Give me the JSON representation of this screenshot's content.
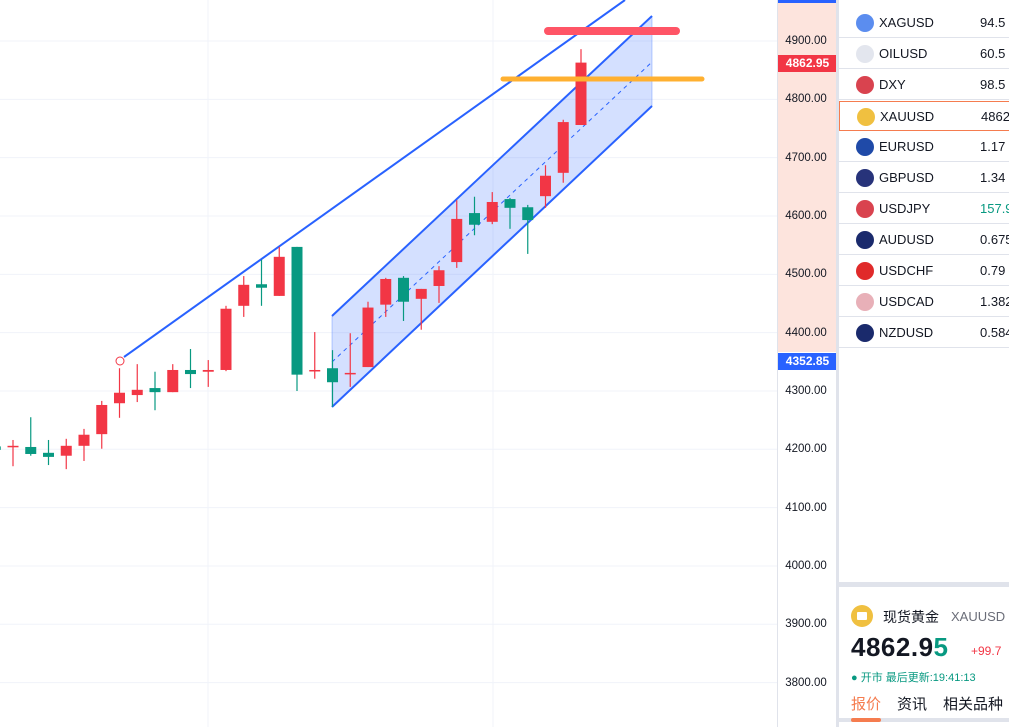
{
  "colors": {
    "up": "#f23645",
    "down": "#089981",
    "drawing": "#2962ff",
    "accent": "#f57c4f",
    "red_level": "#ff5566",
    "orange_level": "#ffb030"
  },
  "price_axis": {
    "ticks": [
      "4900.00",
      "4800.00",
      "4700.00",
      "4600.00",
      "4500.00",
      "4400.00",
      "4300.00",
      "4200.00",
      "4100.00",
      "4000.00",
      "3900.00",
      "3800.00"
    ],
    "last_price_label": "4862.95",
    "crosshair_price_label": "4352.85"
  },
  "watchlist": [
    {
      "symbol": "XAGUSD",
      "value": "94.5",
      "icon": "silver-icon",
      "icon_color": "#5b8def"
    },
    {
      "symbol": "OILUSD",
      "value": "60.5",
      "icon": "oil-icon",
      "icon_color": "#e3e6ee"
    },
    {
      "symbol": "DXY",
      "value": "98.5",
      "icon": "us-flag-icon",
      "icon_color": "#d9434f"
    },
    {
      "symbol": "XAUUSD",
      "value": "4862",
      "icon": "gold-icon",
      "icon_color": "#f0c040",
      "active": true
    },
    {
      "symbol": "EURUSD",
      "value": "1.17",
      "icon": "eu-flag-icon",
      "icon_color": "#1f4aa8"
    },
    {
      "symbol": "GBPUSD",
      "value": "1.34",
      "icon": "uk-flag-icon",
      "icon_color": "#27337a"
    },
    {
      "symbol": "USDJPY",
      "value": "157.9",
      "icon": "jp-flag-icon",
      "icon_color": "#d9434f",
      "value_color": "#089981"
    },
    {
      "symbol": "AUDUSD",
      "value": "0.675",
      "icon": "au-flag-icon",
      "icon_color": "#1a2a6c"
    },
    {
      "symbol": "USDCHF",
      "value": "0.79",
      "icon": "ch-flag-icon",
      "icon_color": "#e02a2a"
    },
    {
      "symbol": "USDCAD",
      "value": "1.382",
      "icon": "ca-flag-icon",
      "icon_color": "#e8b0b8"
    },
    {
      "symbol": "NZDUSD",
      "value": "0.584",
      "icon": "nz-flag-icon",
      "icon_color": "#1a2a6c"
    }
  ],
  "detail": {
    "name": "现货黄金",
    "symbol": "XAUUSD",
    "price_main": "4862.9",
    "price_last_digit": "5",
    "change": "+99.7",
    "status": "● 开市 最后更新:19:41:13",
    "tabs": [
      "报价",
      "资讯",
      "相关品种"
    ],
    "active_tab": "报价"
  },
  "chart_data": {
    "type": "candlestick",
    "ylim": [
      3750,
      4970
    ],
    "grid": true,
    "candles": [
      [
        4205,
        4208,
        4195,
        4199
      ],
      [
        4204,
        4216,
        4171,
        4206
      ],
      [
        4204,
        4255,
        4189,
        4192
      ],
      [
        4194,
        4216,
        4173,
        4187
      ],
      [
        4189,
        4218,
        4166,
        4206
      ],
      [
        4206,
        4235,
        4180,
        4225
      ],
      [
        4226,
        4283,
        4201,
        4276
      ],
      [
        4279,
        4339,
        4254,
        4297
      ],
      [
        4293,
        4346,
        4281,
        4302
      ],
      [
        4305,
        4333,
        4267,
        4298
      ],
      [
        4298,
        4346,
        4298,
        4336
      ],
      [
        4336,
        4372,
        4305,
        4329
      ],
      [
        4333,
        4353,
        4307,
        4336
      ],
      [
        4336,
        4446,
        4334,
        4441
      ],
      [
        4446,
        4497,
        4427,
        4482
      ],
      [
        4483,
        4525,
        4446,
        4477
      ],
      [
        4463,
        4547,
        4463,
        4530
      ],
      [
        4547,
        4547,
        4300,
        4328
      ],
      [
        4334,
        4401,
        4321,
        4336
      ],
      [
        4339,
        4370,
        4273,
        4315
      ],
      [
        4329,
        4399,
        4307,
        4331
      ],
      [
        4341,
        4453,
        4341,
        4443
      ],
      [
        4448,
        4494,
        4427,
        4492
      ],
      [
        4494,
        4497,
        4420,
        4453
      ],
      [
        4458,
        4475,
        4405,
        4475
      ],
      [
        4480,
        4514,
        4451,
        4507
      ],
      [
        4521,
        4627,
        4511,
        4595
      ],
      [
        4605,
        4633,
        4567,
        4585
      ],
      [
        4590,
        4641,
        4586,
        4624
      ],
      [
        4629,
        4631,
        4578,
        4614
      ],
      [
        4615,
        4619,
        4535,
        4593
      ],
      [
        4634,
        4687,
        4614,
        4669
      ],
      [
        4674,
        4765,
        4657,
        4761
      ],
      [
        4756,
        4886,
        4756,
        4862.95
      ]
    ]
  }
}
